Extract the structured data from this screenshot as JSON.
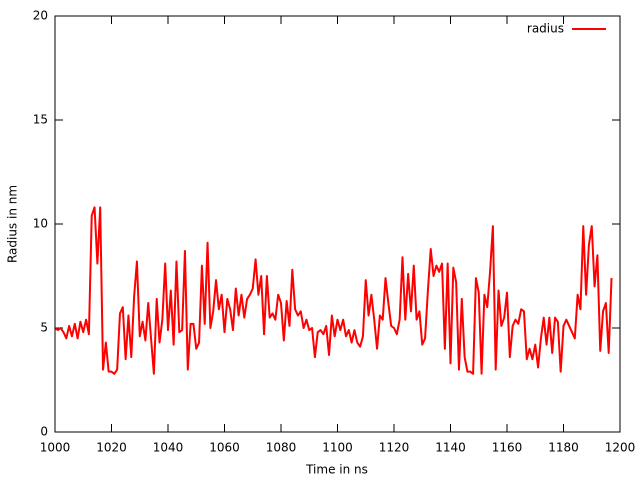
{
  "chart_data": {
    "type": "line",
    "x_label": "Time in ns",
    "y_label": "Radius in nm",
    "xlim": [
      1000,
      1200
    ],
    "xticks": [
      1000,
      1020,
      1040,
      1060,
      1080,
      1100,
      1120,
      1140,
      1160,
      1180,
      1200
    ],
    "ylim": [
      0,
      20
    ],
    "yticks": [
      0,
      5,
      10,
      15,
      20
    ],
    "legend": "top-right",
    "x": [
      1000,
      1001,
      1002,
      1003,
      1004,
      1005,
      1006,
      1007,
      1008,
      1009,
      1010,
      1011,
      1012,
      1013,
      1014,
      1015,
      1016,
      1017,
      1018,
      1019,
      1020,
      1021,
      1022,
      1023,
      1024,
      1025,
      1026,
      1027,
      1028,
      1029,
      1030,
      1031,
      1032,
      1033,
      1034,
      1035,
      1036,
      1037,
      1038,
      1039,
      1040,
      1041,
      1042,
      1043,
      1044,
      1045,
      1046,
      1047,
      1048,
      1049,
      1050,
      1051,
      1052,
      1053,
      1054,
      1055,
      1056,
      1057,
      1058,
      1059,
      1060,
      1061,
      1062,
      1063,
      1064,
      1065,
      1066,
      1067,
      1068,
      1069,
      1070,
      1071,
      1072,
      1073,
      1074,
      1075,
      1076,
      1077,
      1078,
      1079,
      1080,
      1081,
      1082,
      1083,
      1084,
      1085,
      1086,
      1087,
      1088,
      1089,
      1090,
      1091,
      1092,
      1093,
      1094,
      1095,
      1096,
      1097,
      1098,
      1099,
      1100,
      1101,
      1102,
      1103,
      1104,
      1105,
      1106,
      1107,
      1108,
      1109,
      1110,
      1111,
      1112,
      1113,
      1114,
      1115,
      1116,
      1117,
      1118,
      1119,
      1120,
      1121,
      1122,
      1123,
      1124,
      1125,
      1126,
      1127,
      1128,
      1129,
      1130,
      1131,
      1132,
      1133,
      1134,
      1135,
      1136,
      1137,
      1138,
      1139,
      1140,
      1141,
      1142,
      1143,
      1144,
      1145,
      1146,
      1147,
      1148,
      1149,
      1150,
      1151,
      1152,
      1153,
      1154,
      1155,
      1156,
      1157,
      1158,
      1159,
      1160,
      1161,
      1162,
      1163,
      1164,
      1165,
      1166,
      1167,
      1168,
      1169,
      1170,
      1171,
      1172,
      1173,
      1174,
      1175,
      1176,
      1177,
      1178,
      1179,
      1180,
      1181,
      1182,
      1183,
      1184,
      1185,
      1186,
      1187,
      1188,
      1189,
      1190,
      1191,
      1192,
      1193,
      1194,
      1195,
      1196,
      1197
    ],
    "series": [
      {
        "name": "radius",
        "color": "#ff0000",
        "values": [
          5.0,
          4.9,
          5.0,
          4.8,
          4.5,
          5.1,
          4.6,
          5.2,
          4.5,
          5.3,
          4.8,
          5.4,
          4.7,
          10.4,
          10.8,
          8.1,
          10.8,
          3.0,
          4.3,
          2.9,
          2.9,
          2.8,
          3.0,
          5.7,
          6.0,
          3.5,
          5.6,
          3.6,
          6.5,
          8.2,
          4.6,
          5.3,
          4.4,
          6.2,
          4.5,
          2.8,
          6.4,
          4.3,
          5.4,
          8.1,
          4.9,
          6.8,
          4.2,
          8.2,
          4.8,
          4.9,
          8.7,
          3.0,
          5.2,
          5.2,
          4.0,
          4.3,
          8.0,
          5.2,
          9.1,
          5.0,
          5.8,
          7.3,
          5.9,
          6.6,
          4.8,
          6.4,
          5.9,
          4.9,
          6.9,
          5.6,
          6.6,
          5.5,
          6.4,
          6.6,
          6.9,
          8.3,
          6.6,
          7.5,
          4.7,
          7.5,
          5.5,
          5.7,
          5.4,
          6.6,
          6.2,
          4.4,
          6.3,
          5.1,
          7.8,
          5.9,
          5.6,
          5.8,
          5.0,
          5.4,
          4.9,
          5.0,
          3.6,
          4.8,
          4.9,
          4.7,
          5.1,
          3.7,
          5.6,
          4.6,
          5.4,
          4.9,
          5.4,
          4.6,
          4.9,
          4.3,
          4.9,
          4.3,
          4.1,
          4.6,
          7.3,
          5.6,
          6.6,
          5.4,
          4.0,
          5.6,
          5.4,
          7.4,
          6.2,
          5.1,
          5.0,
          4.7,
          5.4,
          8.4,
          5.4,
          7.6,
          5.8,
          8.0,
          5.4,
          5.8,
          4.2,
          4.5,
          6.8,
          8.8,
          7.5,
          8.0,
          7.7,
          8.1,
          4.0,
          8.1,
          3.3,
          7.9,
          7.2,
          3.0,
          6.4,
          3.6,
          2.9,
          2.9,
          2.8,
          7.4,
          6.7,
          2.8,
          6.6,
          6.0,
          7.7,
          9.9,
          3.0,
          6.8,
          5.1,
          5.5,
          6.7,
          3.6,
          5.1,
          5.4,
          5.2,
          5.9,
          5.8,
          3.5,
          4.0,
          3.5,
          4.2,
          3.1,
          4.5,
          5.5,
          4.2,
          5.5,
          3.8,
          5.5,
          5.3,
          2.9,
          5.1,
          5.4,
          5.1,
          4.8,
          4.5,
          6.6,
          5.9,
          9.9,
          6.6,
          9.0,
          9.9,
          7.0,
          8.5,
          3.9,
          5.8,
          6.2,
          3.8,
          7.4
        ]
      }
    ]
  }
}
